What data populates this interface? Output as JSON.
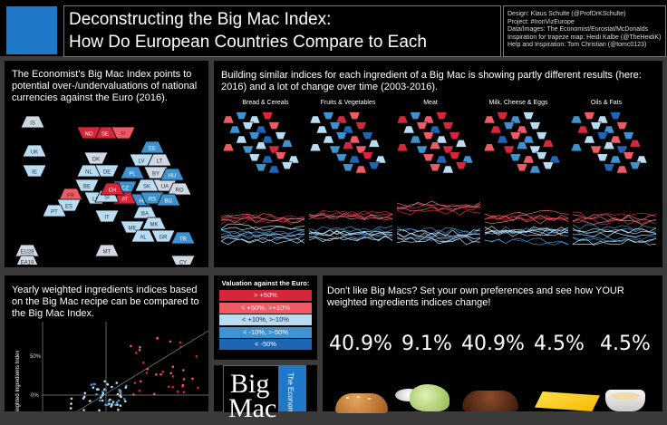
{
  "header": {
    "title_line1": "Deconstructing the Big Mac Index:",
    "title_line2": "How Do European Countries Compare to Each",
    "credits": [
      "Design: Klaus Schulte (@ProfDrKSchulte)",
      "Project: #IronVizEurope",
      "Data/Images: The Economist/Eurostat/McDonalds",
      "Inspiration for trapeze map: Heidi Kalbe (@TheHeidiK)",
      "Help and Inspiration: Tom Christian (@tomc0123)"
    ],
    "logo_color": "#1f78c8"
  },
  "map_panel": {
    "description": "The Economist's Big Mac Index points to potential over-/undervaluations of national currencies against the Euro (2016).",
    "countries": [
      "IS",
      "SE",
      "FI",
      "NO",
      "EE",
      "UK",
      "DK",
      "LV",
      "LT",
      "IE",
      "NL",
      "DE",
      "PL",
      "BY",
      "BE",
      "CZ",
      "SK",
      "UA",
      "HU",
      "FR",
      "LU",
      "AT",
      "SI",
      "HR",
      "RO",
      "ES",
      "CH",
      "RS",
      "BG",
      "PT",
      "IT",
      "BA",
      "ME",
      "MK",
      "AL",
      "GR",
      "TR",
      "MT",
      "CY",
      "EU28",
      "EA19"
    ]
  },
  "ingredients_panel": {
    "description": "Building similar indices for each ingredient of a Big Mac is showing partly different results (here: 2016) and a lot of change over time (2003-2016).",
    "categories": [
      "Bread & Cereals",
      "Fruits & Vegetables",
      "Meat",
      "Milk, Cheese & Eggs",
      "Oils & Fats"
    ]
  },
  "scatter_panel": {
    "description": "Yearly weighted ingredients indices based on the Big Mac recipe can be compared to the Big Mac Index.",
    "y_axis_label": "eighted Ingredients Index",
    "y_ticks": [
      "50%",
      "0%"
    ]
  },
  "legend": {
    "title": "Valuation against the Euro:",
    "items": [
      {
        "label": "> +50%",
        "color": "#d6263c"
      },
      {
        "label": "< +50%, >+10%",
        "color": "#ef5a64"
      },
      {
        "label": "< +10%, >-10%",
        "color": "#b9dcf2"
      },
      {
        "label": "< -10%, >-50%",
        "color": "#3f92cf"
      },
      {
        "label": "< -50%",
        "color": "#1e66b4"
      }
    ]
  },
  "logo_book": {
    "line1": "Big",
    "line2": "Mac",
    "side": "The Economist"
  },
  "preferences": {
    "description": "Don't like Big Macs? Set your own preferences and see how YOUR weighted ingredients indices change!",
    "values": [
      "40.9%",
      "9.1%",
      "40.9%",
      "4.5%",
      "4.5%"
    ]
  }
}
